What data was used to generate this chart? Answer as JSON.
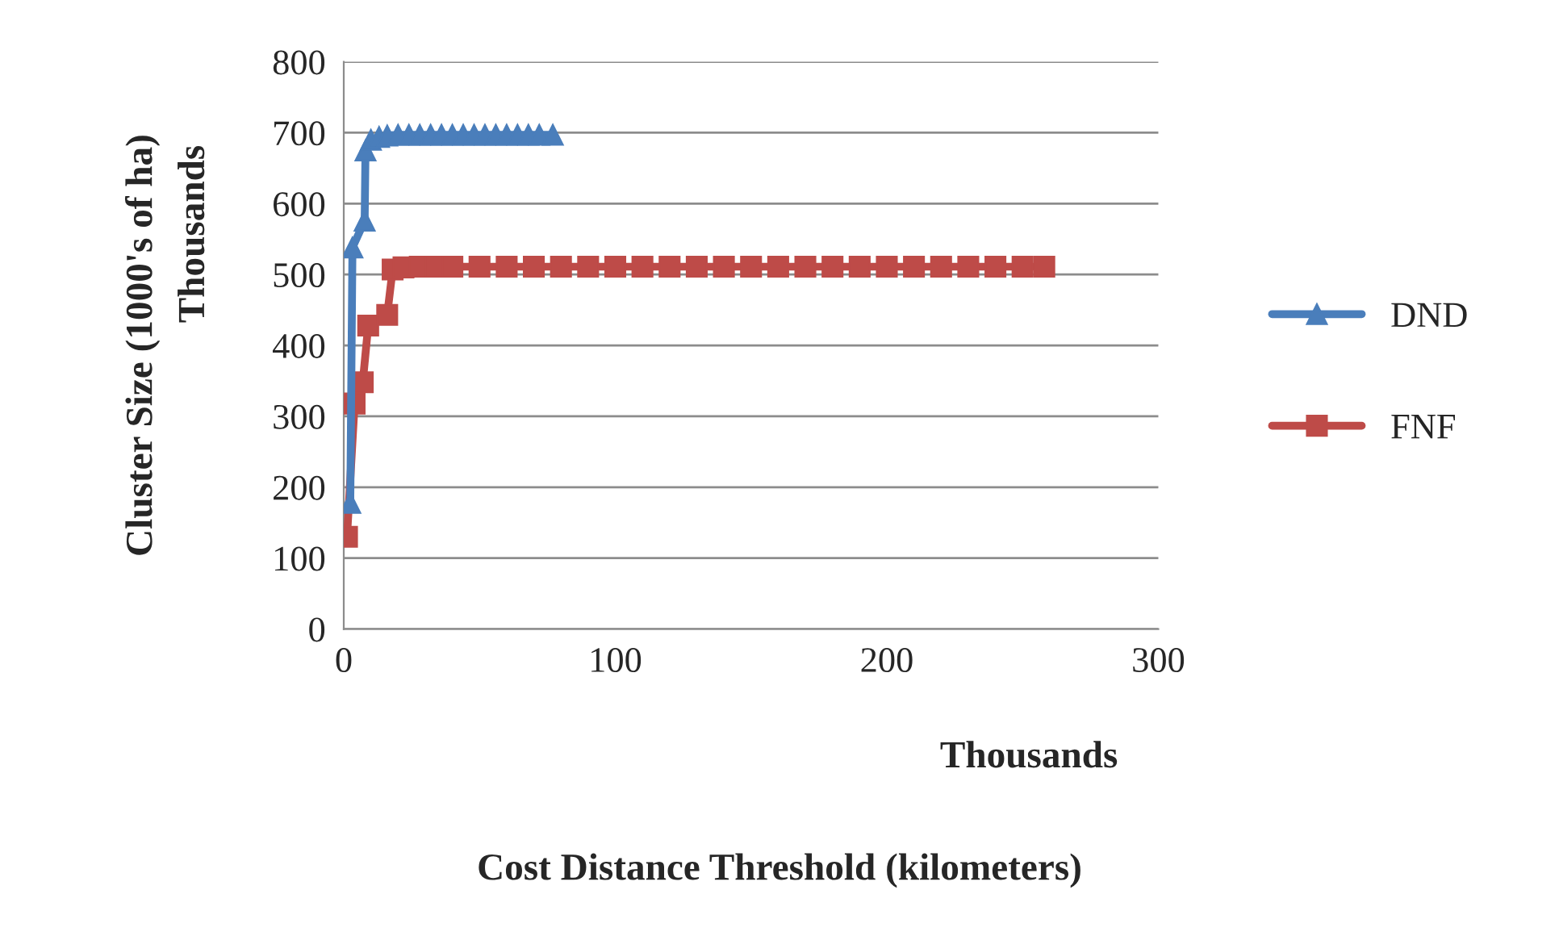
{
  "chart_data": {
    "type": "line",
    "xlabel": "Cost Distance Threshold (kilometers)",
    "ylabel": "Cluster Size (1000's of ha)",
    "annotations": [
      "Thousands",
      "Thousands"
    ],
    "xlim": [
      0,
      300
    ],
    "xticks": [
      0,
      100,
      200,
      300
    ],
    "ylim": [
      0,
      800
    ],
    "yticks": [
      0,
      100,
      200,
      300,
      400,
      500,
      600,
      700,
      800
    ],
    "grid": "y",
    "legend": "right",
    "series": [
      {
        "name": "DND",
        "color": "#4a7ebb",
        "marker": "triangle",
        "x": [
          2.4,
          3.2,
          7.7,
          8,
          10,
          13,
          16,
          20,
          24,
          28,
          32,
          36,
          40,
          44,
          48,
          52,
          56,
          60,
          64,
          68,
          72,
          77
        ],
        "values": [
          178,
          538,
          576,
          675,
          690,
          694,
          696,
          697,
          697,
          697,
          697,
          697,
          697,
          697,
          697,
          697,
          697,
          697,
          697,
          697,
          697,
          697
        ]
      },
      {
        "name": "FNF",
        "color": "#be4b48",
        "marker": "square",
        "x": [
          1.2,
          4,
          7,
          9,
          16,
          18,
          22,
          28,
          34,
          40,
          50,
          60,
          70,
          80,
          90,
          100,
          110,
          120,
          130,
          140,
          150,
          160,
          170,
          180,
          190,
          200,
          210,
          220,
          230,
          240,
          250,
          258
        ],
        "values": [
          130,
          318,
          348,
          428,
          443,
          507,
          510,
          511,
          511,
          511,
          511,
          511,
          511,
          511,
          511,
          511,
          511,
          511,
          511,
          511,
          511,
          511,
          511,
          511,
          511,
          511,
          511,
          511,
          511,
          511,
          511,
          511
        ]
      }
    ]
  }
}
